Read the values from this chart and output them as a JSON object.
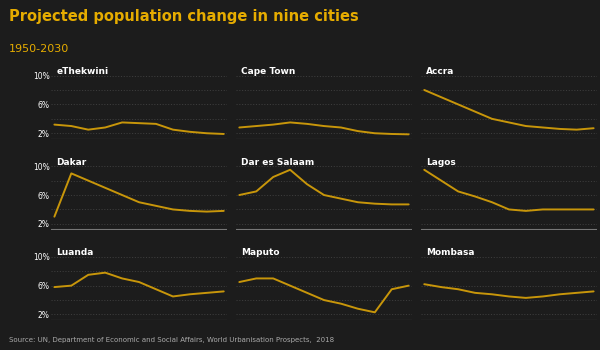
{
  "title": "Projected population change in nine cities",
  "subtitle": "1950-2030",
  "source": "Source: UN, Department of Economic and Social Affairs, World Urbanisation Prospects,  2018",
  "bg_color": "#1c1c1c",
  "title_color": "#e6ac00",
  "subtitle_color": "#e6ac00",
  "text_color": "#ffffff",
  "line_color": "#c8960a",
  "grid_color": "#555555",
  "source_color": "#aaaaaa",
  "yticks": [
    2,
    6,
    10
  ],
  "grid_lines": [
    2,
    4,
    6,
    8,
    10
  ],
  "ylim": [
    1.2,
    11.5
  ],
  "cities": [
    "eThekwini",
    "Cape Town",
    "Accra",
    "Dakar",
    "Dar es Salaam",
    "Lagos",
    "Luanda",
    "Maputo",
    "Mombasa"
  ],
  "data": {
    "eThekwini": [
      3.2,
      3.0,
      2.5,
      2.8,
      3.5,
      3.4,
      3.3,
      2.5,
      2.2,
      2.0,
      1.9
    ],
    "Cape Town": [
      2.8,
      3.0,
      3.2,
      3.5,
      3.3,
      3.0,
      2.8,
      2.3,
      2.0,
      1.9,
      1.85
    ],
    "Accra": [
      8.0,
      7.0,
      6.0,
      5.0,
      4.0,
      3.5,
      3.0,
      2.8,
      2.6,
      2.5,
      2.7
    ],
    "Dakar": [
      3.0,
      9.0,
      8.0,
      7.0,
      6.0,
      5.0,
      4.5,
      4.0,
      3.8,
      3.7,
      3.8
    ],
    "Dar es Salaam": [
      6.0,
      6.5,
      8.5,
      9.5,
      7.5,
      6.0,
      5.5,
      5.0,
      4.8,
      4.7,
      4.7
    ],
    "Lagos": [
      9.5,
      8.0,
      6.5,
      5.8,
      5.0,
      4.0,
      3.8,
      4.0,
      4.0,
      4.0,
      4.0
    ],
    "Luanda": [
      5.8,
      6.0,
      7.5,
      7.8,
      7.0,
      6.5,
      5.5,
      4.5,
      4.8,
      5.0,
      5.2
    ],
    "Maputo": [
      6.5,
      7.0,
      7.0,
      6.0,
      5.0,
      4.0,
      3.5,
      2.8,
      2.3,
      5.5,
      6.0
    ],
    "Mombasa": [
      6.2,
      5.8,
      5.5,
      5.0,
      4.8,
      4.5,
      4.3,
      4.5,
      4.8,
      5.0,
      5.2
    ]
  }
}
